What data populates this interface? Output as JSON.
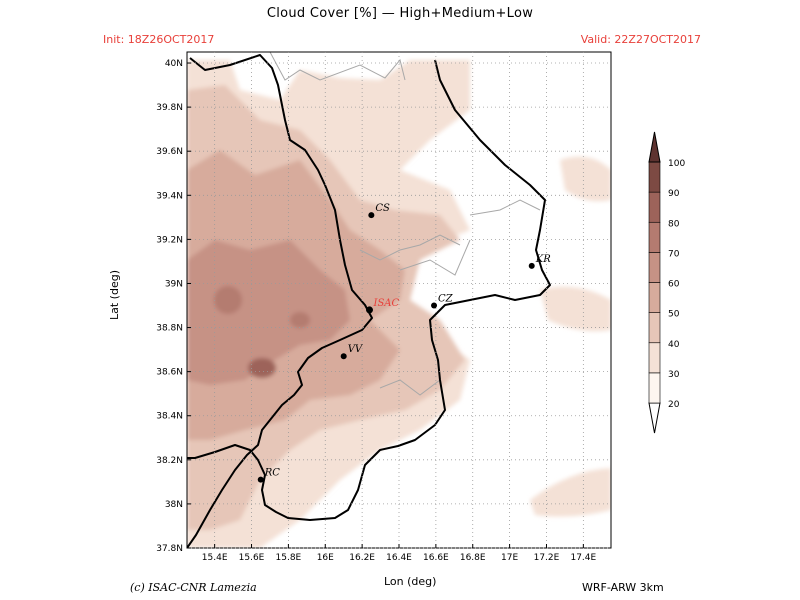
{
  "header": {
    "title": "Cloud Cover [%] — High+Medium+Low",
    "init": "Init: 18Z26OCT2017",
    "valid": "Valid: 22Z27OCT2017"
  },
  "axes": {
    "xlabel": "Lon (deg)",
    "ylabel": "Lat (deg)",
    "lon_range": [
      15.25,
      17.55
    ],
    "lat_range": [
      37.8,
      40.05
    ],
    "lon_ticks": [
      "15.4E",
      "15.6E",
      "15.8E",
      "16E",
      "16.2E",
      "16.4E",
      "16.6E",
      "16.8E",
      "17E",
      "17.2E",
      "17.4E"
    ],
    "lat_ticks": [
      "37.8N",
      "38N",
      "38.2N",
      "38.4N",
      "38.6N",
      "38.8N",
      "39N",
      "39.2N",
      "39.4N",
      "39.6N",
      "39.8N",
      "40N"
    ]
  },
  "cities": [
    {
      "name": "CS",
      "lon": 16.25,
      "lat": 39.31,
      "highlight": false
    },
    {
      "name": "ISAC",
      "lon": 16.24,
      "lat": 38.88,
      "highlight": true
    },
    {
      "name": "CZ",
      "lon": 16.59,
      "lat": 38.9,
      "highlight": false
    },
    {
      "name": "KR",
      "lon": 17.12,
      "lat": 39.08,
      "highlight": false
    },
    {
      "name": "VV",
      "lon": 16.1,
      "lat": 38.67,
      "highlight": false
    },
    {
      "name": "RC",
      "lon": 15.65,
      "lat": 38.11,
      "highlight": false
    }
  ],
  "colorbar": {
    "levels": [
      "20",
      "30",
      "40",
      "50",
      "60",
      "70",
      "80",
      "90",
      "100"
    ],
    "colors": [
      "#fdf6f0",
      "#f4e1d6",
      "#e6c6b8",
      "#d7ab9c",
      "#c69285",
      "#b47b70",
      "#9d635a",
      "#7d4a43",
      "#5e3330"
    ]
  },
  "footer": {
    "credit": "(c) ISAC-CNR Lamezia",
    "model": "WRF-ARW 3km"
  }
}
